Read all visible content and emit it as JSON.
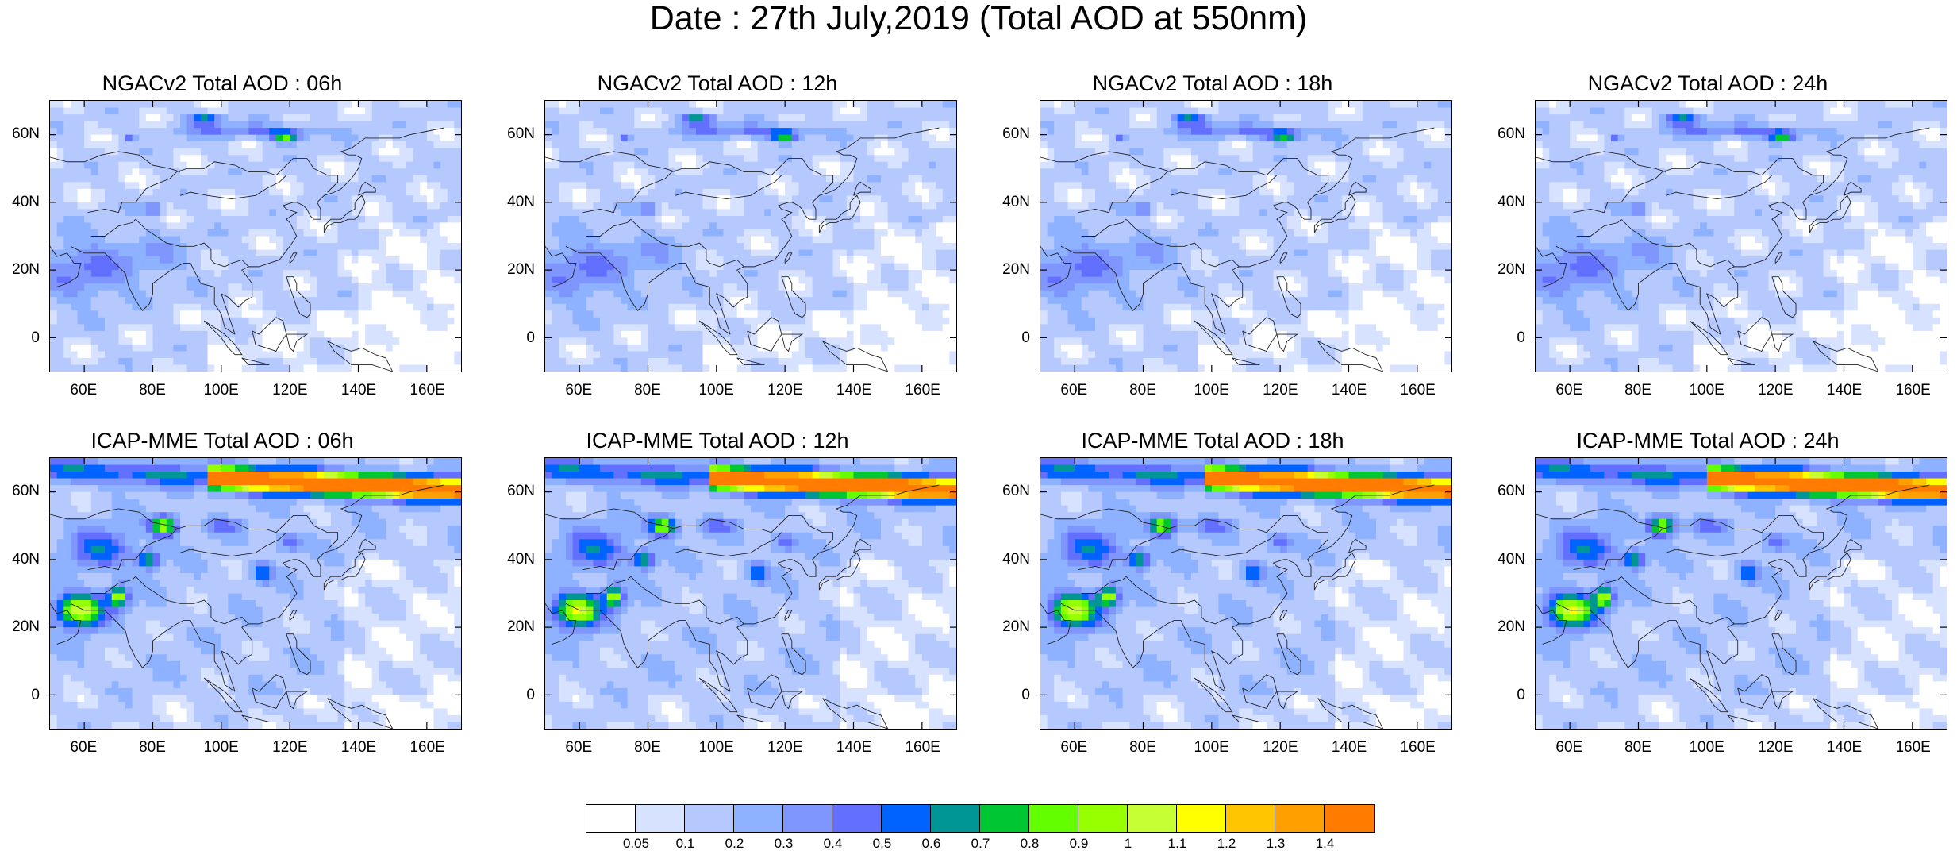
{
  "title": "Date : 27th July,2019 (Total AOD at 550nm)",
  "lat_labels": [
    "60N",
    "40N",
    "20N",
    "0"
  ],
  "lon_labels": [
    "60E",
    "80E",
    "100E",
    "120E",
    "140E",
    "160E"
  ],
  "panels": [
    {
      "title": "NGACv2 Total AOD : 06h",
      "model": "ngac",
      "hour": 6
    },
    {
      "title": "NGACv2 Total AOD : 12h",
      "model": "ngac",
      "hour": 12
    },
    {
      "title": "NGACv2 Total AOD : 18h",
      "model": "ngac",
      "hour": 18
    },
    {
      "title": "NGACv2 Total AOD : 24h",
      "model": "ngac",
      "hour": 24
    },
    {
      "title": "ICAP-MME Total AOD : 06h",
      "model": "icap",
      "hour": 6
    },
    {
      "title": "ICAP-MME Total AOD : 12h",
      "model": "icap",
      "hour": 12
    },
    {
      "title": "ICAP-MME Total AOD : 18h",
      "model": "icap",
      "hour": 18
    },
    {
      "title": "ICAP-MME Total AOD : 24h",
      "model": "icap",
      "hour": 24
    }
  ],
  "colorbar": {
    "colors": [
      "#ffffff",
      "#d6e2ff",
      "#b5c9ff",
      "#8eb2ff",
      "#7f96ff",
      "#6370ff",
      "#0063ff",
      "#009696",
      "#00c633",
      "#63ff00",
      "#96ff00",
      "#c6ff33",
      "#ffff00",
      "#ffc600",
      "#ffa000",
      "#ff7c00",
      "#ff1900"
    ],
    "labels": [
      "0.05",
      "0.1",
      "0.2",
      "0.3",
      "0.4",
      "0.5",
      "0.6",
      "0.7",
      "0.8",
      "0.9",
      "1",
      "1.1",
      "1.2",
      "1.3",
      "1.4"
    ]
  }
}
